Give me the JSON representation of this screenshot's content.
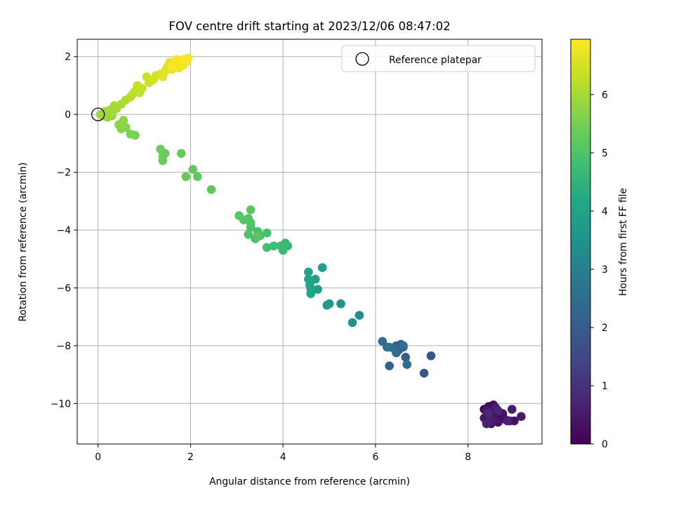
{
  "chart_data": {
    "type": "scatter",
    "title": "FOV centre drift starting at 2023/12/06 08:47:02",
    "xlabel": "Angular distance from reference (arcmin)",
    "ylabel": "Rotation from reference (arcmin)",
    "xlim": [
      -0.45,
      9.6
    ],
    "ylim": [
      -11.4,
      2.6
    ],
    "xticks": [
      0,
      2,
      4,
      6,
      8
    ],
    "yticks": [
      2,
      0,
      -2,
      -4,
      -6,
      -8,
      -10
    ],
    "grid": true,
    "legend": {
      "position": "top-right",
      "entries": [
        "Reference platepar"
      ]
    },
    "reference_point": {
      "x": 0,
      "y": 0,
      "label": "Reference platepar"
    },
    "colorbar": {
      "label": "Hours from first FF file",
      "colormap": "viridis",
      "range": [
        0,
        6.95
      ],
      "ticks": [
        0,
        1,
        2,
        3,
        4,
        5,
        6
      ]
    },
    "series": [
      {
        "color_by": "hours",
        "points": [
          [
            8.35,
            -10.2,
            0.1
          ],
          [
            8.45,
            -10.1,
            0.12
          ],
          [
            8.5,
            -10.3,
            0.15
          ],
          [
            8.55,
            -10.05,
            0.18
          ],
          [
            8.6,
            -10.4,
            0.2
          ],
          [
            8.7,
            -10.5,
            0.22
          ],
          [
            8.4,
            -10.6,
            0.25
          ],
          [
            8.5,
            -10.7,
            0.28
          ],
          [
            8.8,
            -10.55,
            0.3
          ],
          [
            8.9,
            -10.6,
            0.32
          ],
          [
            9.0,
            -10.6,
            0.34
          ],
          [
            8.65,
            -10.65,
            0.36
          ],
          [
            8.75,
            -10.35,
            0.38
          ],
          [
            8.45,
            -10.45,
            0.4
          ],
          [
            8.55,
            -10.55,
            0.42
          ],
          [
            8.4,
            -10.25,
            0.45
          ],
          [
            8.35,
            -10.5,
            0.48
          ],
          [
            8.95,
            -10.2,
            0.5
          ],
          [
            9.15,
            -10.45,
            0.52
          ],
          [
            8.6,
            -10.15,
            0.55
          ],
          [
            8.5,
            -10.6,
            0.6
          ],
          [
            8.85,
            -10.6,
            0.65
          ],
          [
            8.4,
            -10.7,
            0.7
          ],
          [
            8.65,
            -10.25,
            0.75
          ],
          [
            8.45,
            -10.35,
            0.8
          ],
          [
            7.2,
            -8.35,
            1.8
          ],
          [
            7.05,
            -8.95,
            1.9
          ],
          [
            6.6,
            -8.05,
            2.0
          ],
          [
            6.65,
            -8.4,
            2.05
          ],
          [
            6.45,
            -8.0,
            2.1
          ],
          [
            6.5,
            -8.15,
            2.15
          ],
          [
            6.55,
            -7.95,
            2.2
          ],
          [
            6.3,
            -8.7,
            2.25
          ],
          [
            6.25,
            -8.05,
            2.3
          ],
          [
            6.4,
            -8.1,
            2.35
          ],
          [
            6.68,
            -8.65,
            2.4
          ],
          [
            6.15,
            -7.85,
            2.45
          ],
          [
            6.6,
            -8.0,
            2.5
          ],
          [
            6.45,
            -8.25,
            2.55
          ],
          [
            6.3,
            -8.05,
            2.6
          ],
          [
            5.65,
            -6.95,
            3.4
          ],
          [
            5.5,
            -7.2,
            3.5
          ],
          [
            5.25,
            -6.55,
            3.6
          ],
          [
            5.0,
            -6.55,
            3.7
          ],
          [
            4.95,
            -6.6,
            3.75
          ],
          [
            4.75,
            -6.05,
            3.8
          ],
          [
            4.85,
            -5.3,
            3.85
          ],
          [
            4.7,
            -5.7,
            3.9
          ],
          [
            4.6,
            -6.05,
            3.95
          ],
          [
            4.55,
            -5.45,
            4.0
          ],
          [
            4.58,
            -5.9,
            4.05
          ],
          [
            4.6,
            -6.2,
            4.1
          ],
          [
            4.55,
            -5.7,
            4.15
          ],
          [
            4.1,
            -4.55,
            4.6
          ],
          [
            4.05,
            -4.45,
            4.65
          ],
          [
            4.0,
            -4.7,
            4.7
          ],
          [
            3.95,
            -4.55,
            4.75
          ],
          [
            3.8,
            -4.55,
            4.8
          ],
          [
            3.65,
            -4.6,
            4.85
          ],
          [
            3.65,
            -4.1,
            4.85
          ],
          [
            3.5,
            -4.2,
            4.9
          ],
          [
            3.45,
            -4.05,
            4.9
          ],
          [
            3.4,
            -4.3,
            4.95
          ],
          [
            3.3,
            -3.9,
            5.0
          ],
          [
            3.25,
            -4.15,
            5.0
          ],
          [
            3.25,
            -3.6,
            5.05
          ],
          [
            3.3,
            -3.75,
            5.05
          ],
          [
            3.15,
            -3.65,
            5.1
          ],
          [
            3.05,
            -3.5,
            5.1
          ],
          [
            3.3,
            -3.3,
            5.15
          ],
          [
            3.45,
            -4.2,
            5.15
          ],
          [
            2.45,
            -2.6,
            5.2
          ],
          [
            2.15,
            -2.15,
            5.22
          ],
          [
            2.05,
            -1.9,
            5.25
          ],
          [
            1.9,
            -2.15,
            5.27
          ],
          [
            1.8,
            -1.35,
            5.3
          ],
          [
            1.45,
            -1.35,
            5.32
          ],
          [
            1.4,
            -1.6,
            5.35
          ],
          [
            1.35,
            -1.2,
            5.37
          ],
          [
            1.4,
            -1.45,
            5.4
          ],
          [
            0.8,
            -0.72,
            5.55
          ],
          [
            0.7,
            -0.68,
            5.6
          ],
          [
            0.6,
            -0.45,
            5.65
          ],
          [
            0.5,
            -0.5,
            5.7
          ],
          [
            0.45,
            -0.35,
            5.72
          ],
          [
            0.55,
            -0.2,
            5.75
          ],
          [
            0.3,
            -0.05,
            5.8
          ],
          [
            0.2,
            -0.1,
            5.85
          ],
          [
            0.1,
            -0.05,
            5.88
          ],
          [
            0.05,
            0.0,
            5.9
          ],
          [
            0.15,
            0.1,
            5.92
          ],
          [
            0.25,
            0.15,
            5.95
          ],
          [
            0.3,
            0.05,
            5.97
          ],
          [
            0.35,
            0.3,
            6.0
          ],
          [
            0.4,
            0.2,
            6.02
          ],
          [
            0.5,
            0.35,
            6.05
          ],
          [
            0.6,
            0.5,
            6.1
          ],
          [
            0.7,
            0.6,
            6.15
          ],
          [
            0.75,
            0.7,
            6.2
          ],
          [
            0.8,
            0.8,
            6.25
          ],
          [
            0.9,
            0.75,
            6.3
          ],
          [
            0.95,
            0.9,
            6.35
          ],
          [
            0.85,
            1.0,
            6.38
          ],
          [
            1.05,
            1.3,
            6.4
          ],
          [
            1.1,
            1.1,
            6.45
          ],
          [
            1.2,
            1.2,
            6.5
          ],
          [
            1.25,
            1.35,
            6.52
          ],
          [
            1.35,
            1.4,
            6.55
          ],
          [
            1.45,
            1.5,
            6.6
          ],
          [
            1.5,
            1.65,
            6.62
          ],
          [
            1.4,
            1.3,
            6.65
          ],
          [
            1.55,
            1.8,
            6.68
          ],
          [
            1.6,
            1.55,
            6.7
          ],
          [
            1.65,
            1.7,
            6.72
          ],
          [
            1.7,
            1.75,
            6.75
          ],
          [
            1.75,
            1.6,
            6.78
          ],
          [
            1.8,
            1.85,
            6.8
          ],
          [
            1.85,
            1.7,
            6.82
          ],
          [
            1.9,
            1.8,
            6.85
          ],
          [
            1.95,
            1.95,
            6.88
          ],
          [
            1.7,
            1.9,
            6.9
          ],
          [
            1.6,
            1.65,
            6.92
          ],
          [
            1.85,
            1.9,
            6.95
          ]
        ]
      }
    ]
  }
}
